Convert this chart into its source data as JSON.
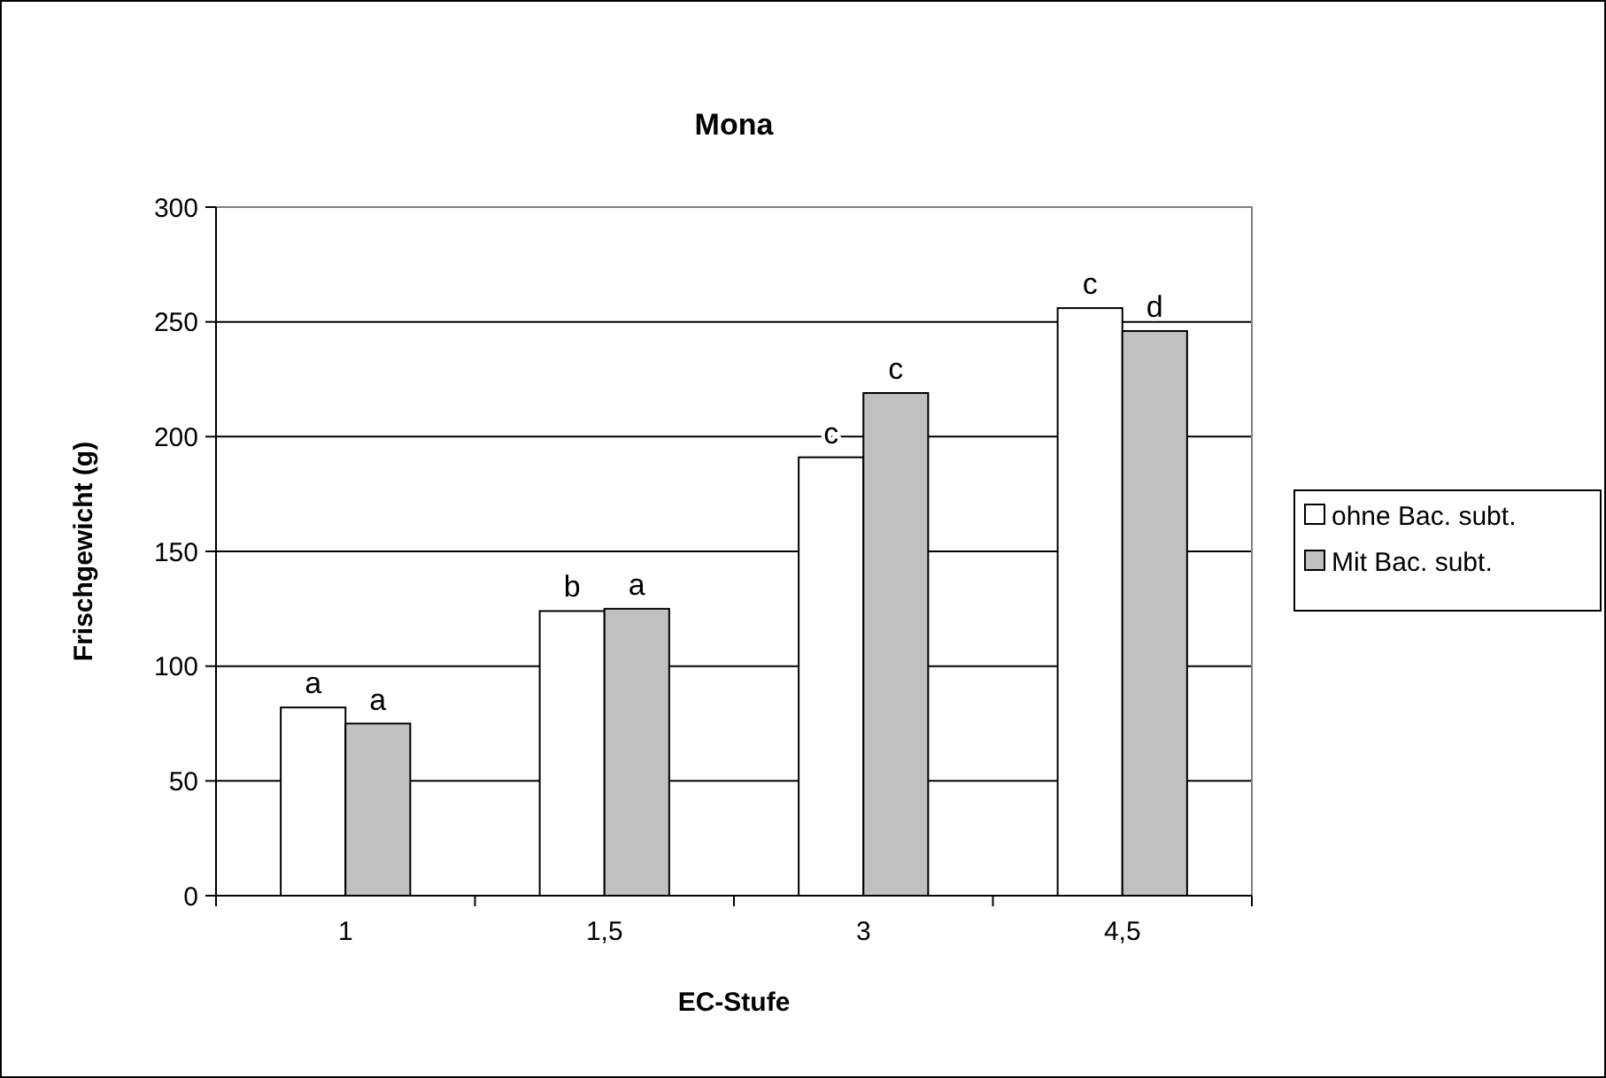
{
  "chart_data": {
    "type": "bar",
    "title": "Mona",
    "xlabel": "EC-Stufe",
    "ylabel": "Frischgewicht (g)",
    "categories": [
      "1",
      "1,5",
      "3",
      "4,5"
    ],
    "series": [
      {
        "name": "ohne Bac. subt.",
        "color": "#ffffff",
        "values": [
          82,
          124,
          191,
          256
        ]
      },
      {
        "name": "Mit Bac. subt.",
        "color": "#c0c0c0",
        "values": [
          75,
          125,
          219,
          246
        ]
      }
    ],
    "ylim": [
      0,
      300
    ],
    "yticks": [
      0,
      50,
      100,
      150,
      200,
      250,
      300
    ],
    "grid": "y",
    "legend": "right",
    "annotations": [
      {
        "text": "a",
        "x": "1",
        "y": 82
      },
      {
        "text": "a",
        "x": "1",
        "y": 75
      },
      {
        "text": "b",
        "x": "1,5",
        "y": 124
      },
      {
        "text": "a",
        "x": "1,5",
        "y": 125
      },
      {
        "text": "c",
        "x": "3",
        "y": 191
      },
      {
        "text": "c",
        "x": "3",
        "y": 219
      },
      {
        "text": "c",
        "x": "4,5",
        "y": 256
      },
      {
        "text": "d",
        "x": "4,5",
        "y": 246
      }
    ]
  }
}
